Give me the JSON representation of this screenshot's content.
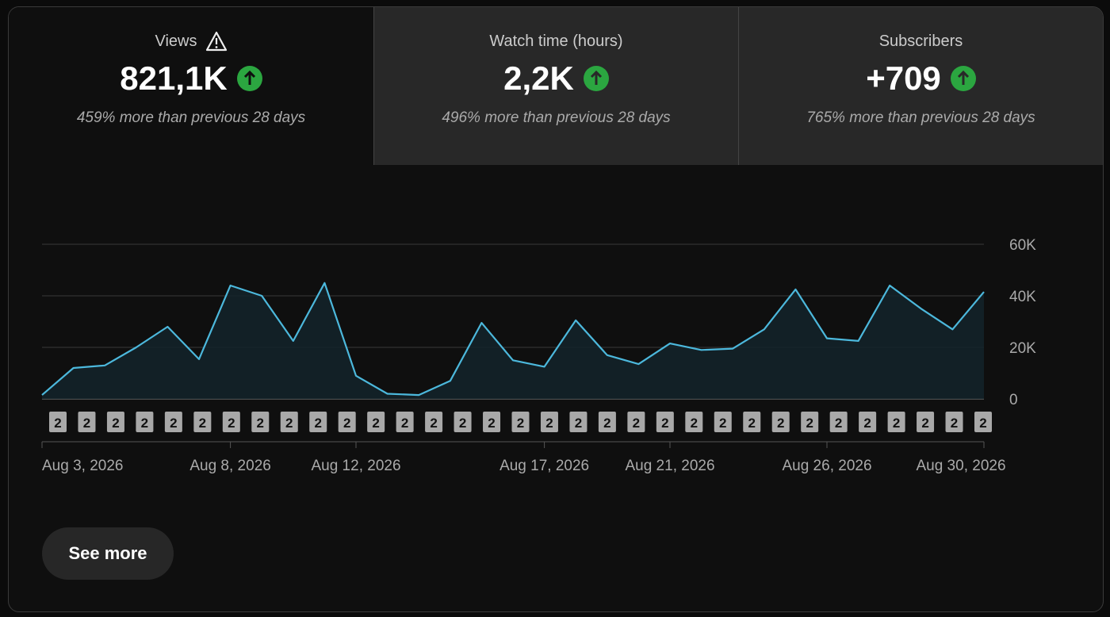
{
  "cards": [
    {
      "title": "Views",
      "value": "821,1K",
      "note": "459% more than previous 28 days"
    },
    {
      "title": "Watch time (hours)",
      "value": "2,2K",
      "note": "496% more than previous 28 days"
    },
    {
      "title": "Subscribers",
      "value": "+709",
      "note": "765% more than previous 28 days"
    }
  ],
  "chart_data": {
    "type": "line",
    "categories": [
      "Aug 3, 2026",
      null,
      null,
      null,
      null,
      null,
      "Aug 8, 2026",
      null,
      null,
      null,
      "Aug 12, 2026",
      null,
      null,
      null,
      null,
      null,
      "Aug 17, 2026",
      null,
      null,
      null,
      "Aug 21, 2026",
      null,
      null,
      null,
      null,
      "Aug 26, 2026",
      null,
      null,
      null,
      null,
      "Aug 30, 2026"
    ],
    "values": [
      1500,
      12000,
      13000,
      20000,
      28000,
      15400,
      44000,
      40000,
      22500,
      45000,
      9000,
      2000,
      1500,
      7000,
      29500,
      15000,
      12500,
      30500,
      17000,
      13500,
      21500,
      19000,
      19500,
      27000,
      42500,
      23500,
      22500,
      44000,
      35000,
      27000,
      41500
    ],
    "color": "#4cb8dc",
    "ylim": [
      0,
      60000
    ],
    "yticks": [
      {
        "value": 0,
        "label": "0"
      },
      {
        "value": 20000,
        "label": "20K"
      },
      {
        "value": 40000,
        "label": "40K"
      },
      {
        "value": 60000,
        "label": "60K"
      }
    ],
    "grid": true,
    "annotations": [
      "2",
      "2",
      "2",
      "2",
      "2",
      "2",
      "2",
      "2",
      "2",
      "2",
      "2",
      "2",
      "2",
      "2",
      "2",
      "2",
      "2",
      "2",
      "2",
      "2",
      "2",
      "2",
      "2",
      "2",
      "2",
      "2",
      "2",
      "2",
      "2",
      "2",
      "2",
      "2",
      "2"
    ]
  },
  "button": "See more"
}
